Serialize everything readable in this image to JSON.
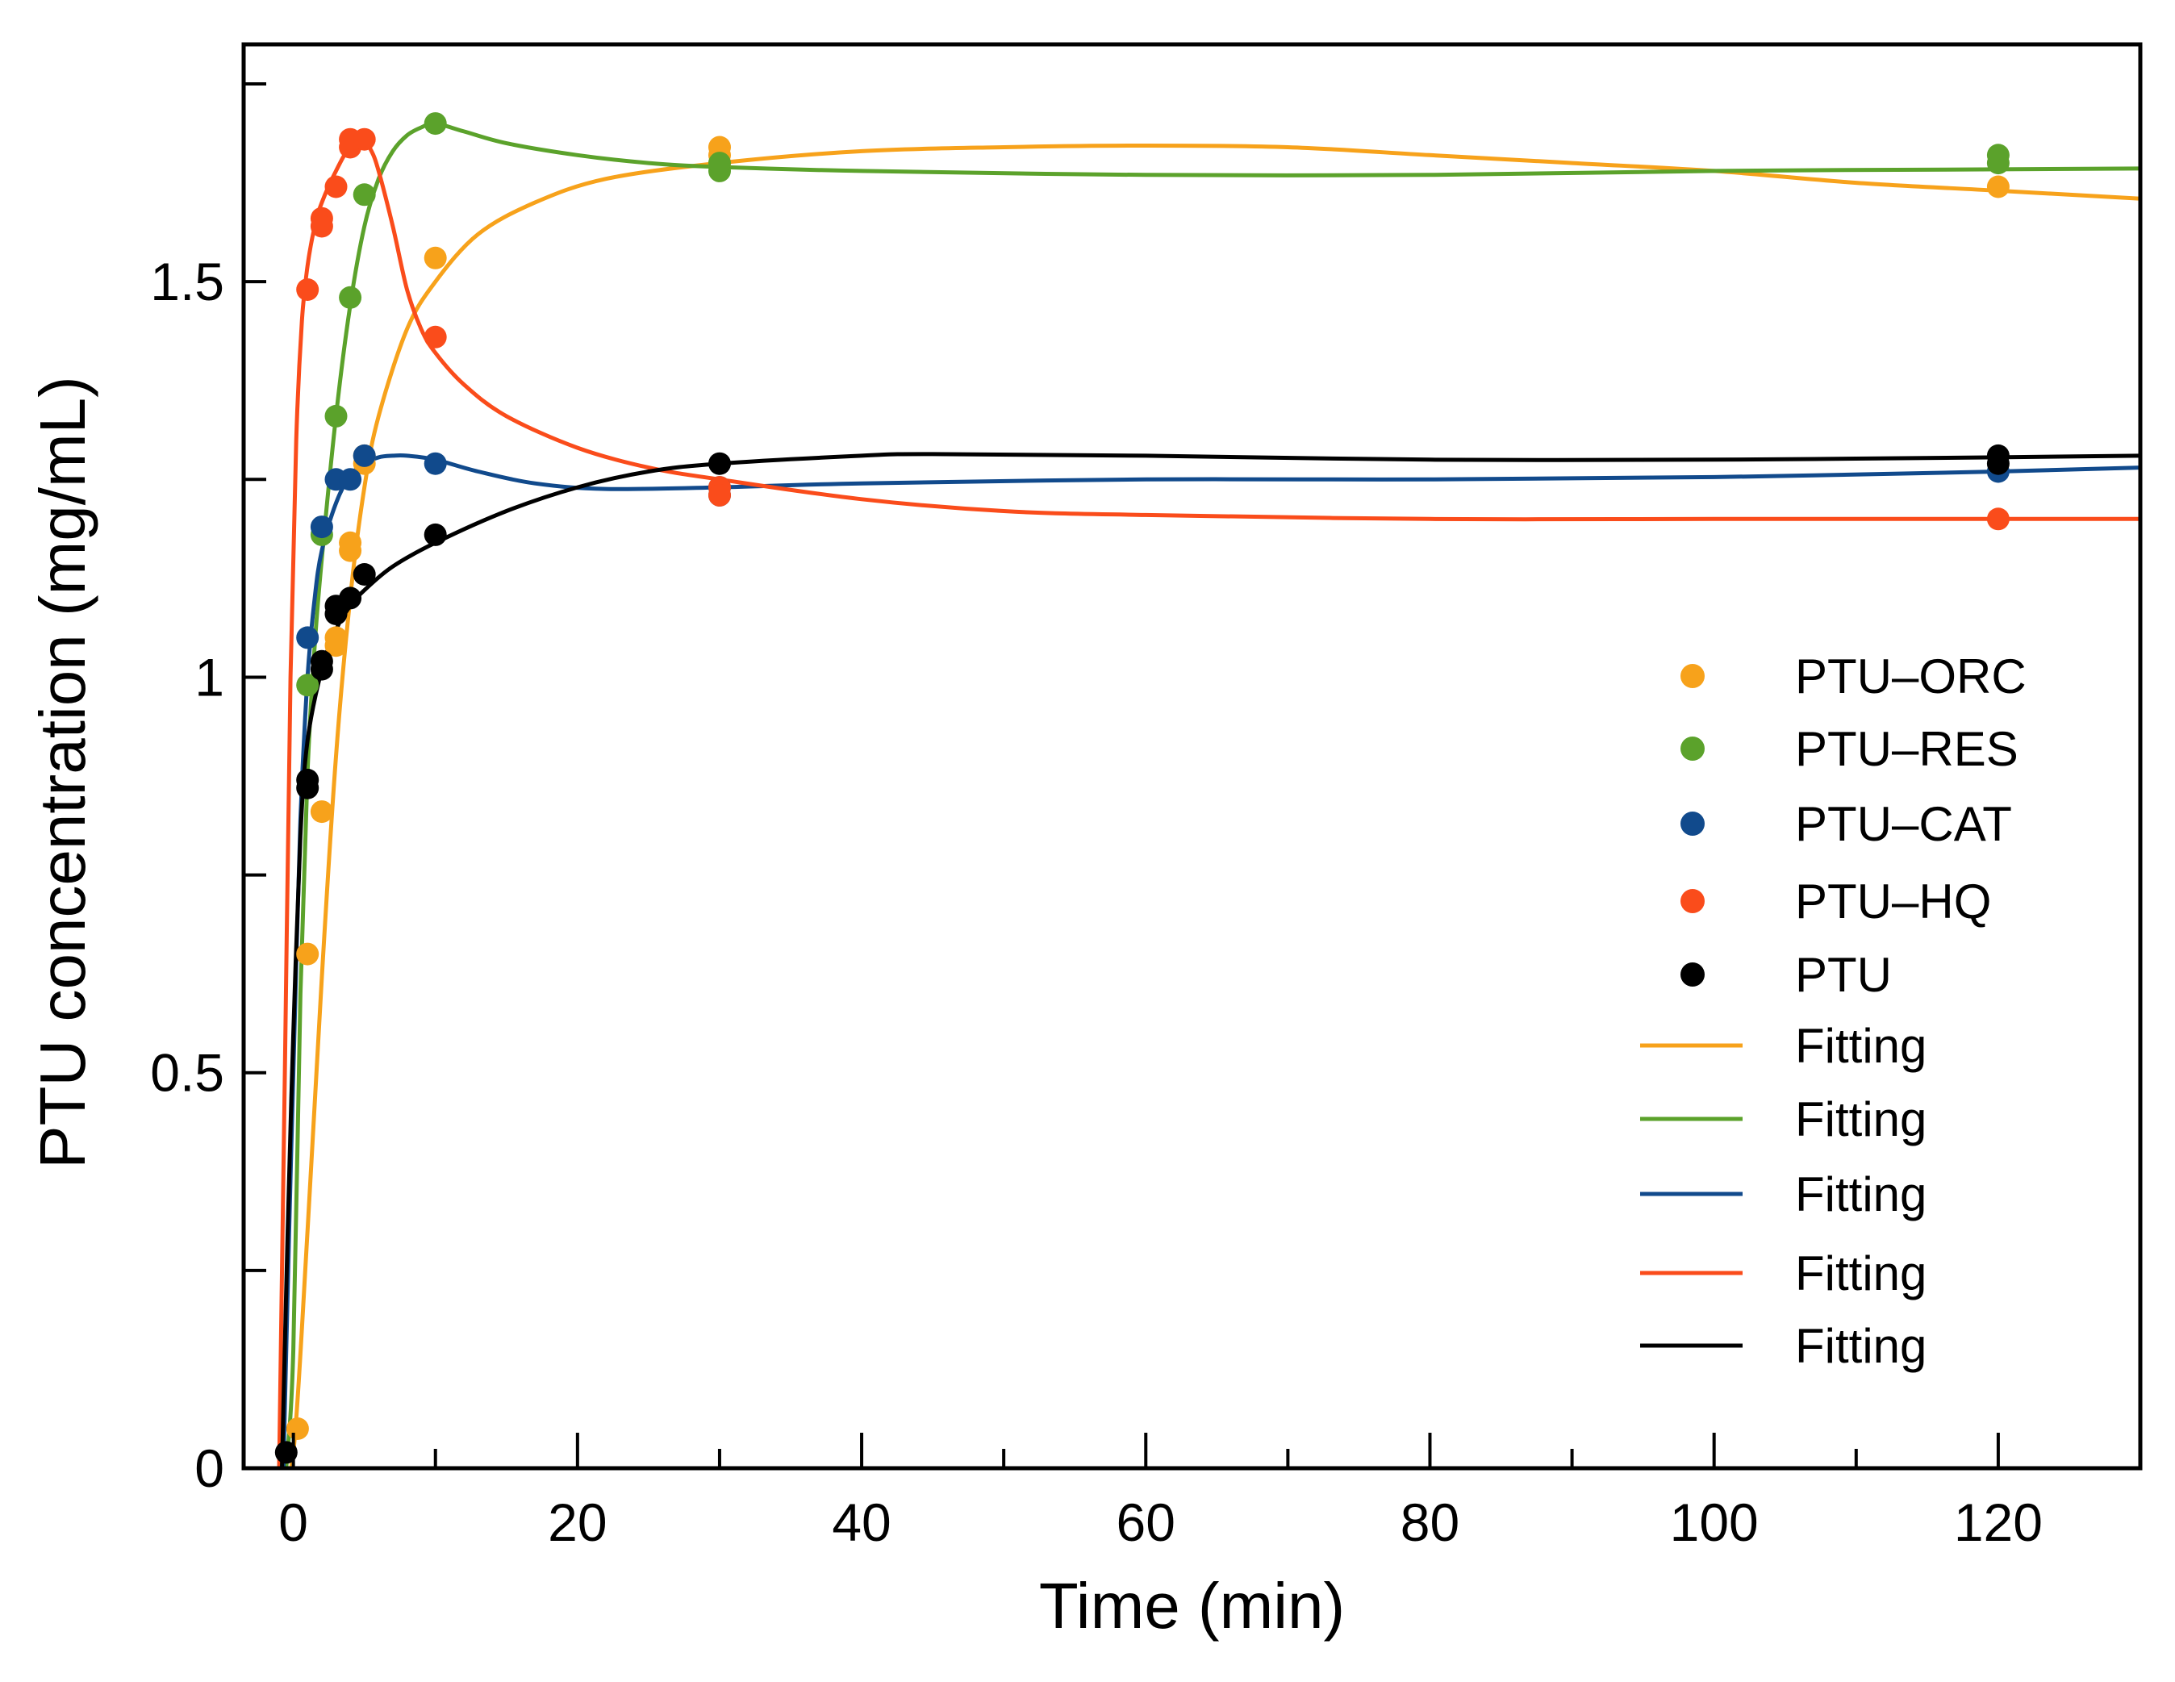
{
  "chart_data": {
    "type": "scatter",
    "title": "",
    "xlabel": "Time (min)",
    "ylabel": "PTU concentration (mg/mL)",
    "xlim": [
      -3.5,
      130
    ],
    "ylim": [
      0,
      1.8
    ],
    "x_major_ticks": [
      0,
      20,
      40,
      60,
      80,
      100,
      120
    ],
    "x_minor_ticks": [
      10,
      30,
      50,
      70,
      90,
      110
    ],
    "x_tick_labels": [
      "0",
      "20",
      "40",
      "60",
      "80",
      "100",
      "120"
    ],
    "y_major_ticks": [
      0,
      0.5,
      1,
      1.5
    ],
    "y_minor_ticks": [
      0.25,
      0.75,
      1.25,
      1.75
    ],
    "y_tick_labels": [
      "0",
      "0.5",
      "1",
      "1.5"
    ],
    "grid": false,
    "legend_position": "right",
    "series": [
      {
        "name": "PTU–ORC",
        "color": "#F7A21B",
        "points": [
          [
            0.3,
            0.05
          ],
          [
            1,
            0.65
          ],
          [
            2,
            0.83
          ],
          [
            3,
            1.04
          ],
          [
            3,
            1.05
          ],
          [
            4,
            1.16
          ],
          [
            4,
            1.17
          ],
          [
            5,
            1.27
          ],
          [
            5,
            1.28
          ],
          [
            10,
            1.53
          ],
          [
            30,
            1.67
          ],
          [
            30,
            1.66
          ],
          [
            30,
            1.65
          ],
          [
            120,
            1.62
          ]
        ],
        "fit": [
          [
            -0.8,
            0
          ],
          [
            0,
            0.02
          ],
          [
            1,
            0.3
          ],
          [
            2,
            0.62
          ],
          [
            3,
            0.9
          ],
          [
            4,
            1.1
          ],
          [
            5,
            1.24
          ],
          [
            6,
            1.33
          ],
          [
            8,
            1.44
          ],
          [
            10,
            1.5
          ],
          [
            13,
            1.56
          ],
          [
            17,
            1.6
          ],
          [
            22,
            1.63
          ],
          [
            30,
            1.65
          ],
          [
            40,
            1.665
          ],
          [
            50,
            1.67
          ],
          [
            60,
            1.672
          ],
          [
            70,
            1.67
          ],
          [
            80,
            1.66
          ],
          [
            90,
            1.65
          ],
          [
            100,
            1.64
          ],
          [
            110,
            1.625
          ],
          [
            120,
            1.615
          ],
          [
            130,
            1.605
          ]
        ]
      },
      {
        "name": "PTU–RES",
        "color": "#5BA22B",
        "points": [
          [
            1,
            0.99
          ],
          [
            2,
            1.18
          ],
          [
            3,
            1.33
          ],
          [
            4,
            1.48
          ],
          [
            5,
            1.61
          ],
          [
            10,
            1.7
          ],
          [
            30,
            1.64
          ],
          [
            30,
            1.65
          ],
          [
            120,
            1.66
          ],
          [
            120,
            1.65
          ]
        ],
        "fit": [
          [
            -0.5,
            0
          ],
          [
            0,
            0.15
          ],
          [
            0.5,
            0.6
          ],
          [
            1,
            0.88
          ],
          [
            1.5,
            1.04
          ],
          [
            2,
            1.15
          ],
          [
            3,
            1.33
          ],
          [
            4,
            1.47
          ],
          [
            5,
            1.57
          ],
          [
            6,
            1.63
          ],
          [
            7,
            1.665
          ],
          [
            8,
            1.685
          ],
          [
            9,
            1.695
          ],
          [
            10,
            1.7
          ],
          [
            12,
            1.69
          ],
          [
            15,
            1.675
          ],
          [
            20,
            1.66
          ],
          [
            25,
            1.65
          ],
          [
            30,
            1.645
          ],
          [
            40,
            1.64
          ],
          [
            60,
            1.635
          ],
          [
            80,
            1.635
          ],
          [
            100,
            1.64
          ],
          [
            120,
            1.642
          ],
          [
            130,
            1.643
          ]
        ]
      },
      {
        "name": "PTU–CAT",
        "color": "#114A8C",
        "points": [
          [
            1,
            1.05
          ],
          [
            2,
            1.19
          ],
          [
            3,
            1.25
          ],
          [
            4,
            1.25
          ],
          [
            5,
            1.28
          ],
          [
            10,
            1.27
          ],
          [
            30,
            1.23
          ],
          [
            30,
            1.24
          ],
          [
            120,
            1.26
          ]
        ],
        "fit": [
          [
            -0.7,
            0
          ],
          [
            -0.3,
            0.3
          ],
          [
            0,
            0.5
          ],
          [
            0.5,
            0.82
          ],
          [
            1,
            1.0
          ],
          [
            1.5,
            1.1
          ],
          [
            2,
            1.16
          ],
          [
            3,
            1.22
          ],
          [
            4,
            1.255
          ],
          [
            5,
            1.27
          ],
          [
            6,
            1.278
          ],
          [
            7,
            1.28
          ],
          [
            8,
            1.28
          ],
          [
            10,
            1.275
          ],
          [
            13,
            1.26
          ],
          [
            17,
            1.245
          ],
          [
            22,
            1.238
          ],
          [
            30,
            1.24
          ],
          [
            40,
            1.245
          ],
          [
            60,
            1.25
          ],
          [
            80,
            1.25
          ],
          [
            100,
            1.253
          ],
          [
            120,
            1.26
          ],
          [
            130,
            1.265
          ]
        ]
      },
      {
        "name": "PTU–HQ",
        "color": "#FA4C1B",
        "points": [
          [
            1,
            1.49
          ],
          [
            2,
            1.58
          ],
          [
            2,
            1.57
          ],
          [
            3,
            1.62
          ],
          [
            4,
            1.67
          ],
          [
            4,
            1.68
          ],
          [
            5,
            1.68
          ],
          [
            10,
            1.43
          ],
          [
            30,
            1.24
          ],
          [
            30,
            1.23
          ],
          [
            120,
            1.2
          ]
        ],
        "fit": [
          [
            -1,
            0
          ],
          [
            -0.6,
            0.5
          ],
          [
            -0.2,
            1.0
          ],
          [
            0.2,
            1.3
          ],
          [
            0.6,
            1.45
          ],
          [
            1,
            1.52
          ],
          [
            1.5,
            1.57
          ],
          [
            2,
            1.6
          ],
          [
            3,
            1.64
          ],
          [
            4,
            1.67
          ],
          [
            5,
            1.675
          ],
          [
            5.5,
            1.665
          ],
          [
            6,
            1.64
          ],
          [
            7,
            1.57
          ],
          [
            8,
            1.49
          ],
          [
            9,
            1.44
          ],
          [
            10,
            1.41
          ],
          [
            12,
            1.37
          ],
          [
            15,
            1.33
          ],
          [
            20,
            1.29
          ],
          [
            25,
            1.265
          ],
          [
            30,
            1.25
          ],
          [
            40,
            1.225
          ],
          [
            50,
            1.21
          ],
          [
            60,
            1.205
          ],
          [
            80,
            1.2
          ],
          [
            100,
            1.2
          ],
          [
            120,
            1.2
          ],
          [
            130,
            1.2
          ]
        ]
      },
      {
        "name": "PTU",
        "color": "#000000",
        "points": [
          [
            -0.5,
            0.02
          ],
          [
            1,
            0.87
          ],
          [
            1,
            0.86
          ],
          [
            2,
            1.01
          ],
          [
            2,
            1.02
          ],
          [
            3,
            1.08
          ],
          [
            3,
            1.09
          ],
          [
            4,
            1.1
          ],
          [
            5,
            1.13
          ],
          [
            10,
            1.18
          ],
          [
            30,
            1.27
          ],
          [
            120,
            1.28
          ],
          [
            120,
            1.27
          ]
        ],
        "fit": [
          [
            -0.8,
            0
          ],
          [
            -0.4,
            0.3
          ],
          [
            0,
            0.55
          ],
          [
            0.5,
            0.8
          ],
          [
            1,
            0.92
          ],
          [
            2,
            1.01
          ],
          [
            3,
            1.06
          ],
          [
            4,
            1.09
          ],
          [
            5,
            1.11
          ],
          [
            7,
            1.14
          ],
          [
            10,
            1.17
          ],
          [
            15,
            1.21
          ],
          [
            20,
            1.24
          ],
          [
            25,
            1.26
          ],
          [
            30,
            1.27
          ],
          [
            40,
            1.28
          ],
          [
            45,
            1.282
          ],
          [
            60,
            1.28
          ],
          [
            80,
            1.275
          ],
          [
            100,
            1.275
          ],
          [
            120,
            1.278
          ],
          [
            130,
            1.28
          ]
        ]
      }
    ],
    "legend": {
      "marker_entries": [
        "PTU–ORC",
        "PTU–RES",
        "PTU–CAT",
        "PTU–HQ",
        "PTU"
      ],
      "line_entries": [
        "Fitting",
        "Fitting",
        "Fitting",
        "Fitting",
        "Fitting"
      ]
    }
  }
}
